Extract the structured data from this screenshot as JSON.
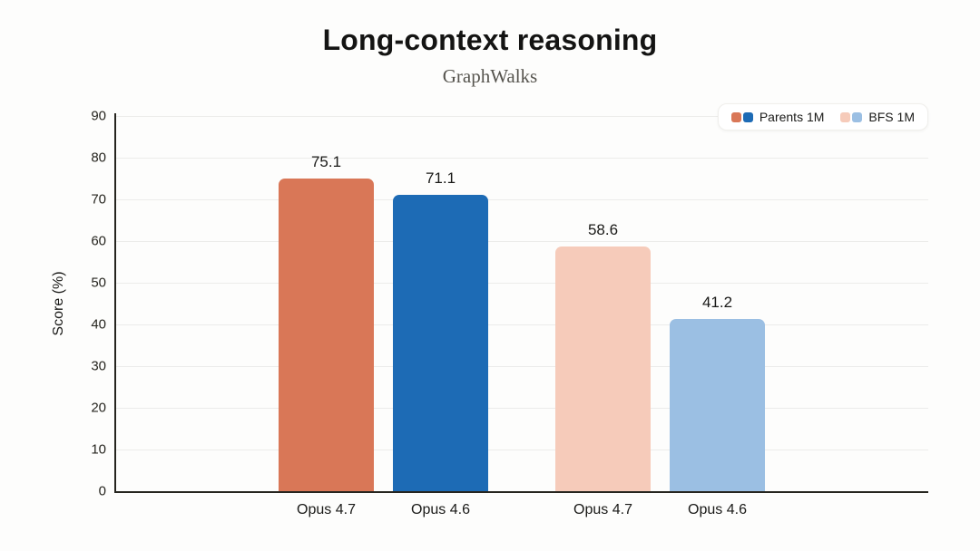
{
  "chart_data": {
    "type": "bar",
    "title": "Long-context reasoning",
    "subtitle": "GraphWalks",
    "ylabel": "Score (%)",
    "ylim": [
      0,
      90
    ],
    "yticks": [
      0,
      10,
      20,
      30,
      40,
      50,
      60,
      70,
      80,
      90
    ],
    "categories": [
      "Opus 4.7",
      "Opus 4.6",
      "Opus 4.7",
      "Opus 4.6"
    ],
    "values": [
      75.1,
      71.1,
      58.6,
      41.2
    ],
    "value_labels": [
      "75.1",
      "71.1",
      "58.6",
      "41.2"
    ],
    "bar_colors": [
      "#D97757",
      "#1D6BB5",
      "#F6CBBA",
      "#9BBFE3"
    ],
    "bar_series": [
      "Parents 1M",
      "Parents 1M",
      "BFS 1M",
      "BFS 1M"
    ],
    "grid": true,
    "legend_position": "top-right",
    "legend": {
      "entries": [
        {
          "label": "Parents 1M",
          "swatch_colors": [
            "#D97757",
            "#1D6BB5"
          ]
        },
        {
          "label": "BFS 1M",
          "swatch_colors": [
            "#F6CBBA",
            "#9BBFE3"
          ]
        }
      ]
    },
    "colors": {
      "background": "#FDFDFC",
      "axis": "#26251F",
      "gridline": "#ECECEA",
      "title_text": "#141413",
      "subtitle_text": "#56544E"
    }
  }
}
